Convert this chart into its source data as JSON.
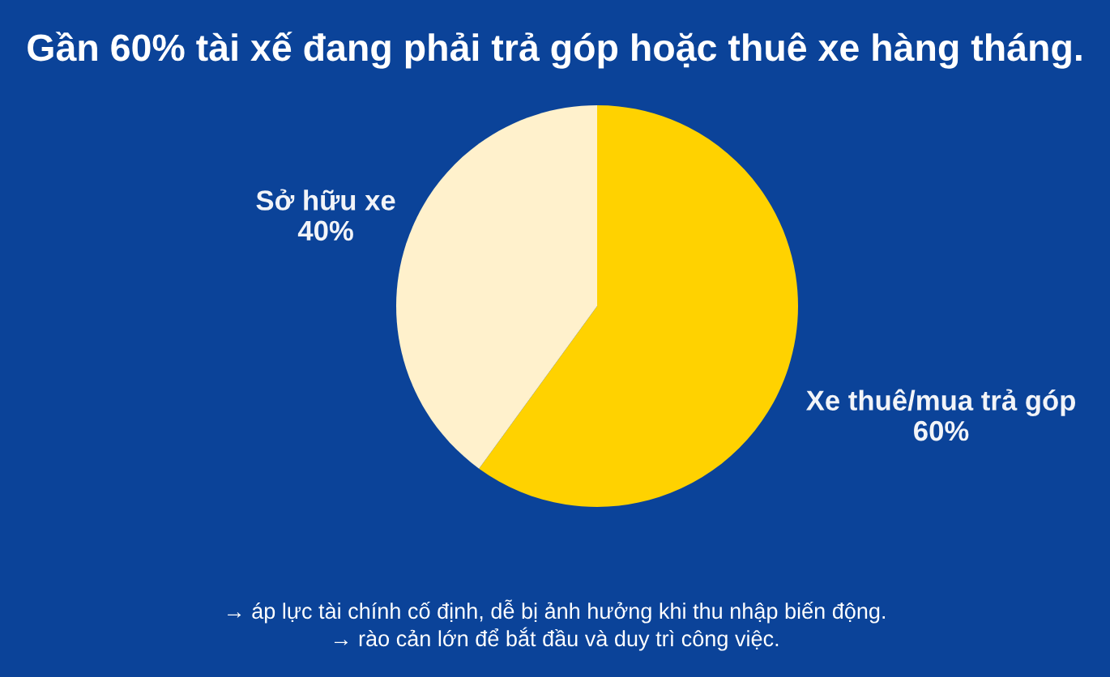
{
  "chart_data": {
    "type": "pie",
    "title": "Gần 60% tài xế đang phải trả góp hoặc thuê xe hàng tháng.",
    "categories": [
      "Xe thuê/mua trả góp",
      "Sở hữu xe"
    ],
    "values": [
      60,
      40
    ],
    "colors": [
      "#ffd200",
      "#fff1cc"
    ],
    "value_labels": [
      "60%",
      "40%"
    ],
    "annotations": [
      "→ áp lực tài chính cố định, dễ bị ảnh hưởng khi thu nhập biến động.",
      "→ rào cản lớn để bắt đầu và duy trì công việc."
    ]
  }
}
